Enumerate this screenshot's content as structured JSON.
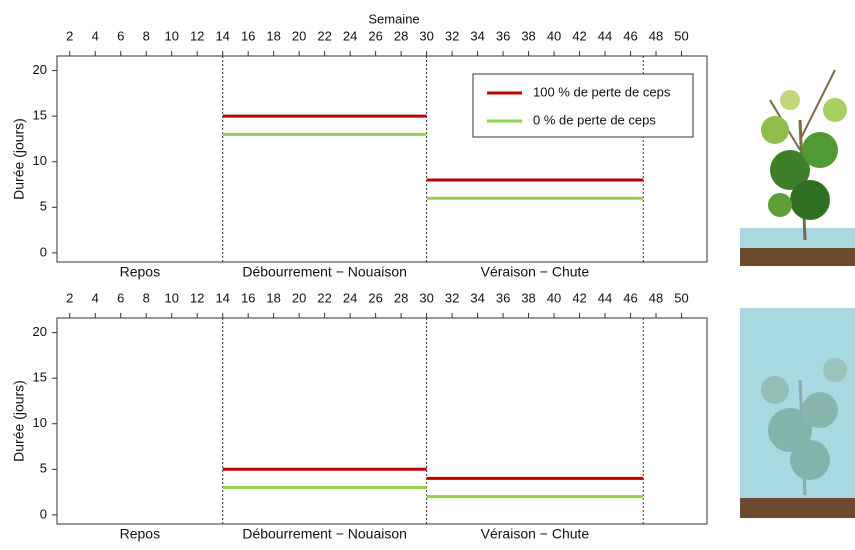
{
  "chart_data": [
    {
      "type": "segment",
      "xlabel": "Semaine",
      "ylabel": "Durée (jours)",
      "xlim": [
        1,
        52
      ],
      "xticks": [
        2,
        4,
        6,
        8,
        10,
        12,
        14,
        16,
        18,
        20,
        22,
        24,
        26,
        28,
        30,
        32,
        34,
        36,
        38,
        40,
        42,
        44,
        46,
        48,
        50
      ],
      "ylim": [
        -1,
        21.6
      ],
      "yticks": [
        0,
        5,
        10,
        15,
        20
      ],
      "categories": [
        "Repos",
        "Débourrement − Nouaison",
        "Véraison − Chute"
      ],
      "category_edges": [
        1,
        14,
        30,
        47
      ],
      "legend": "upper right",
      "series": [
        {
          "name": "100 % de perte de ceps",
          "color": "#c00000",
          "values": [
            null,
            15,
            8
          ]
        },
        {
          "name": "0 % de perte de ceps",
          "color": "#92d050",
          "values": [
            null,
            13,
            6
          ]
        }
      ]
    },
    {
      "type": "segment",
      "ylabel": "Durée (jours)",
      "xlim": [
        1,
        52
      ],
      "xticks": [
        2,
        4,
        6,
        8,
        10,
        12,
        14,
        16,
        18,
        20,
        22,
        24,
        26,
        28,
        30,
        32,
        34,
        36,
        38,
        40,
        42,
        44,
        46,
        48,
        50
      ],
      "ylim": [
        -1,
        21.6
      ],
      "yticks": [
        0,
        5,
        10,
        15,
        20
      ],
      "categories": [
        "Repos",
        "Débourrement − Nouaison",
        "Véraison − Chute"
      ],
      "category_edges": [
        1,
        14,
        30,
        47
      ],
      "series": [
        {
          "color": "#c00000",
          "values": [
            null,
            5,
            4
          ]
        },
        {
          "color": "#92d050",
          "values": [
            null,
            3,
            2
          ]
        }
      ]
    }
  ]
}
